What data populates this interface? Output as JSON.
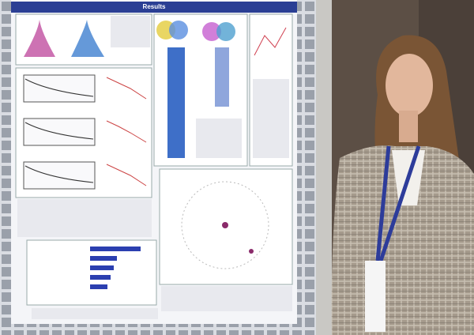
{
  "poster": {
    "header": "Results"
  }
}
